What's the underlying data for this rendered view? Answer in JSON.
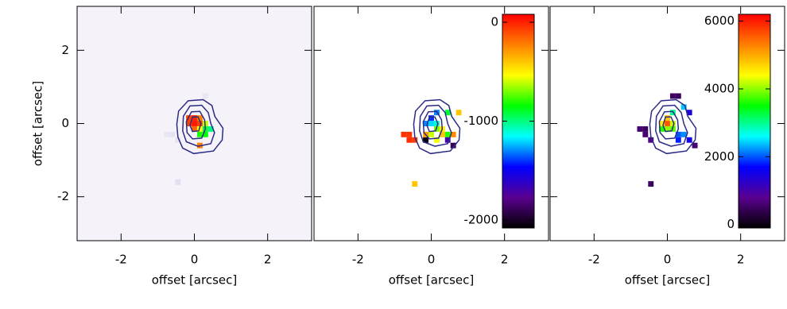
{
  "chart_data": [
    {
      "type": "heatmap",
      "xlabel": "offset [arcsec]",
      "ylabel": "offset [arcsec]",
      "show_ytick_labels": true,
      "xlim": [
        -3.2,
        3.2
      ],
      "ylim": [
        -3.2,
        3.2
      ],
      "xticks": [
        -2,
        0,
        2
      ],
      "yticks": [
        -2,
        0,
        2
      ],
      "background": "#f5f3f9",
      "colormap": [
        "#f5f3f9",
        "#d8d0e8",
        "#00ffff",
        "#00ff00",
        "#ffff00",
        "#ff0000"
      ],
      "clim": [
        0,
        1
      ],
      "x": [
        -0.15,
        0,
        0.15,
        -0.15,
        0,
        0.15,
        0,
        0.15,
        0.3,
        0.3,
        0.3,
        0.15,
        0.45,
        -0.6,
        -0.75,
        -0.45,
        0.3,
        -0.45,
        0.15
      ],
      "y": [
        0.15,
        0.15,
        0.15,
        0,
        0,
        0,
        -0.15,
        -0.15,
        0,
        -0.15,
        -0.3,
        -0.3,
        -0.15,
        -0.3,
        -0.3,
        -0.45,
        0.75,
        -1.6,
        -0.6
      ],
      "values": [
        0.95,
        0.97,
        0.9,
        0.95,
        0.98,
        0.95,
        0.92,
        0.8,
        0.75,
        0.55,
        0.6,
        0.62,
        0.5,
        0.1,
        0.08,
        0.1,
        0.08,
        0.12,
        0.9
      ],
      "contours": [
        {
          "x": [
            -0.17,
            0.24,
            0.48,
            0.56,
            0.78,
            0.76,
            0.52,
            -0.02,
            -0.32,
            -0.45,
            -0.48,
            -0.43
          ],
          "y": [
            0.62,
            0.65,
            0.49,
            0.19,
            -0.13,
            -0.45,
            -0.75,
            -0.82,
            -0.67,
            -0.37,
            -0.02,
            0.34
          ]
        },
        {
          "x": [
            -0.12,
            0.2,
            0.38,
            0.45,
            0.55,
            0.45,
            0.1,
            -0.22,
            -0.32,
            -0.3
          ],
          "y": [
            0.48,
            0.5,
            0.3,
            0,
            -0.25,
            -0.55,
            -0.62,
            -0.5,
            -0.2,
            0.2
          ]
        },
        {
          "x": [
            -0.08,
            0.15,
            0.28,
            0.3,
            0.2,
            -0.05,
            -0.2,
            -0.22
          ],
          "y": [
            0.32,
            0.33,
            0.1,
            -0.15,
            -0.4,
            -0.42,
            -0.25,
            0.05
          ]
        },
        {
          "x": [
            -0.05,
            0.1,
            0.18,
            0.12,
            -0.05,
            -0.12
          ],
          "y": [
            0.18,
            0.18,
            0,
            -0.2,
            -0.22,
            -0.05
          ]
        }
      ],
      "contour_color": "#2b2b86"
    },
    {
      "type": "heatmap",
      "xlabel": "offset [arcsec]",
      "show_ytick_labels": false,
      "xlim": [
        -3.2,
        3.2
      ],
      "ylim": [
        -3.2,
        3.2
      ],
      "xticks": [
        -2,
        0,
        2
      ],
      "yticks": [
        -2,
        0,
        2
      ],
      "background": "#ffffff",
      "colormap": [
        "#000000",
        "#5a0090",
        "#0000ff",
        "#00ffff",
        "#00ff00",
        "#ffff00",
        "#ff8000",
        "#ff0000"
      ],
      "clim": [
        -2080,
        80
      ],
      "colorbar": {
        "ticks": [
          -2000,
          -1000,
          0
        ]
      },
      "x": [
        -0.6,
        -0.75,
        -0.45,
        -0.6,
        -0.45,
        -0.15,
        0,
        0.15,
        0.15,
        0.3,
        0.3,
        0.45,
        0.6,
        0.45,
        0.15,
        0,
        -0.15,
        0.45,
        0.75,
        -0.15,
        0,
        0.15,
        0.6
      ],
      "y": [
        -0.3,
        -0.3,
        -0.45,
        -0.45,
        -1.65,
        -0.45,
        0,
        0,
        -0.15,
        -0.15,
        -0.3,
        -0.3,
        -0.6,
        -0.45,
        0.3,
        0.15,
        0,
        0.3,
        0.3,
        -0.3,
        -0.3,
        -0.45,
        -0.3
      ],
      "values": [
        -50,
        -40,
        -60,
        -30,
        -400,
        -2050,
        -1200,
        -1100,
        -700,
        -500,
        -400,
        -800,
        -1900,
        -1700,
        -1300,
        -1400,
        -1300,
        -900,
        -400,
        -300,
        -600,
        -550,
        -250
      ],
      "contours": [
        {
          "x": [
            -0.17,
            0.24,
            0.48,
            0.56,
            0.78,
            0.76,
            0.52,
            -0.02,
            -0.32,
            -0.45,
            -0.48,
            -0.43
          ],
          "y": [
            0.62,
            0.65,
            0.49,
            0.19,
            -0.13,
            -0.45,
            -0.75,
            -0.82,
            -0.67,
            -0.37,
            -0.02,
            0.34
          ]
        },
        {
          "x": [
            -0.12,
            0.2,
            0.38,
            0.45,
            0.55,
            0.45,
            0.1,
            -0.22,
            -0.32,
            -0.3
          ],
          "y": [
            0.48,
            0.5,
            0.3,
            0,
            -0.25,
            -0.55,
            -0.62,
            -0.5,
            -0.2,
            0.2
          ]
        },
        {
          "x": [
            -0.08,
            0.15,
            0.28,
            0.3,
            0.2,
            -0.05,
            -0.2,
            -0.22
          ],
          "y": [
            0.32,
            0.33,
            0.1,
            -0.15,
            -0.4,
            -0.42,
            -0.25,
            0.05
          ]
        },
        {
          "x": [
            -0.05,
            0.1,
            0.18,
            0.12,
            -0.05,
            -0.12
          ],
          "y": [
            0.18,
            0.18,
            0,
            -0.2,
            -0.22,
            -0.05
          ]
        }
      ],
      "contour_color": "#2b2b86"
    },
    {
      "type": "heatmap",
      "xlabel": "offset [arcsec]",
      "show_ytick_labels": false,
      "xlim": [
        -3.2,
        3.2
      ],
      "ylim": [
        -3.2,
        3.2
      ],
      "xticks": [
        -2,
        0,
        2
      ],
      "yticks": [
        -2,
        0,
        2
      ],
      "background": "#ffffff",
      "colormap": [
        "#000000",
        "#5a0090",
        "#0000ff",
        "#00ffff",
        "#00ff00",
        "#ffff00",
        "#ff8000",
        "#ff0000"
      ],
      "clim": [
        -100,
        6200
      ],
      "colorbar": {
        "ticks": [
          0,
          2000,
          4000,
          6000
        ]
      },
      "x": [
        0,
        0,
        -0.15,
        0.15,
        0,
        0.15,
        -0.15,
        0.3,
        0.45,
        0.3,
        0.6,
        0.45,
        0.6,
        0.15,
        0.3,
        -0.6,
        -0.75,
        -0.45,
        -0.6,
        -0.45,
        0.75,
        0.15
      ],
      "y": [
        0,
        0.15,
        0,
        0,
        -0.15,
        -0.15,
        -0.15,
        -0.3,
        -0.3,
        -0.45,
        -0.45,
        0.45,
        0.3,
        0.75,
        0.75,
        -0.3,
        -0.15,
        -0.45,
        -0.15,
        -1.65,
        -0.6,
        0.3
      ],
      "values": [
        5600,
        4800,
        4500,
        4200,
        4000,
        3800,
        3600,
        2000,
        2200,
        1800,
        1500,
        2400,
        1400,
        500,
        500,
        600,
        600,
        700,
        500,
        500,
        600,
        3000
      ],
      "contours": [
        {
          "x": [
            -0.17,
            0.24,
            0.48,
            0.56,
            0.78,
            0.76,
            0.52,
            -0.02,
            -0.32,
            -0.45,
            -0.48,
            -0.43
          ],
          "y": [
            0.62,
            0.65,
            0.49,
            0.19,
            -0.13,
            -0.45,
            -0.75,
            -0.82,
            -0.67,
            -0.37,
            -0.02,
            0.34
          ]
        },
        {
          "x": [
            -0.12,
            0.2,
            0.38,
            0.45,
            0.55,
            0.45,
            0.1,
            -0.22,
            -0.32,
            -0.3
          ],
          "y": [
            0.48,
            0.5,
            0.3,
            0,
            -0.25,
            -0.55,
            -0.62,
            -0.5,
            -0.2,
            0.2
          ]
        },
        {
          "x": [
            -0.08,
            0.15,
            0.28,
            0.3,
            0.2,
            -0.05,
            -0.2,
            -0.22
          ],
          "y": [
            0.32,
            0.33,
            0.1,
            -0.15,
            -0.4,
            -0.42,
            -0.25,
            0.05
          ]
        },
        {
          "x": [
            -0.05,
            0.1,
            0.18,
            0.12,
            -0.05,
            -0.12
          ],
          "y": [
            0.18,
            0.18,
            0,
            -0.2,
            -0.22,
            -0.05
          ]
        }
      ],
      "contour_color": "#2b2b86"
    }
  ]
}
